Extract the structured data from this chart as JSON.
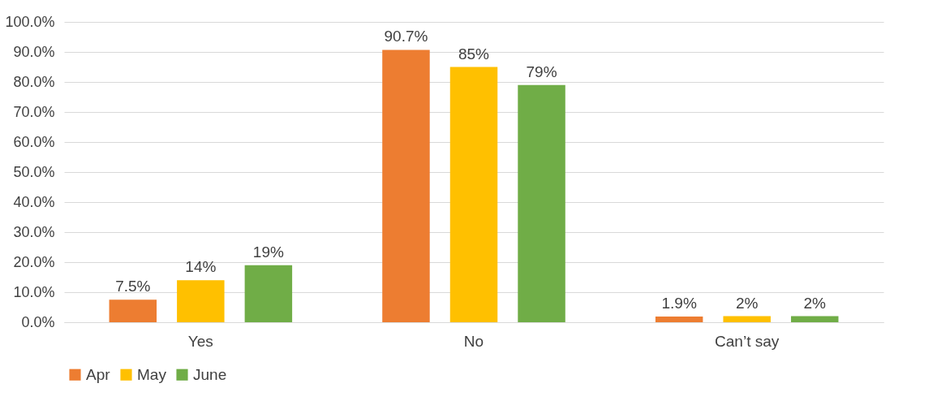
{
  "chart_data": {
    "type": "bar",
    "categories": [
      "Yes",
      "No",
      "Can’t say"
    ],
    "series": [
      {
        "name": "Apr",
        "color": "#ed7d31",
        "values": [
          7.5,
          90.7,
          1.9
        ],
        "value_labels": [
          "7.5%",
          "90.7%",
          "1.9%"
        ]
      },
      {
        "name": "May",
        "color": "#ffc000",
        "values": [
          14,
          85,
          2
        ],
        "value_labels": [
          "14%",
          "85%",
          "2%"
        ]
      },
      {
        "name": "June",
        "color": "#70ad47",
        "values": [
          19,
          79,
          2
        ],
        "value_labels": [
          "19%",
          "79%",
          "2%"
        ]
      }
    ],
    "ylim": [
      0,
      100
    ],
    "yticks": [
      {
        "value": 0,
        "label": "0.0%"
      },
      {
        "value": 10,
        "label": "10.0%"
      },
      {
        "value": 20,
        "label": "20.0%"
      },
      {
        "value": 30,
        "label": "30.0%"
      },
      {
        "value": 40,
        "label": "40.0%"
      },
      {
        "value": 50,
        "label": "50.0%"
      },
      {
        "value": 60,
        "label": "60.0%"
      },
      {
        "value": 70,
        "label": "70.0%"
      },
      {
        "value": 80,
        "label": "80.0%"
      },
      {
        "value": 90,
        "label": "90.0%"
      },
      {
        "value": 100,
        "label": "100.0%"
      }
    ],
    "grid": "y",
    "legend": "bottom"
  }
}
